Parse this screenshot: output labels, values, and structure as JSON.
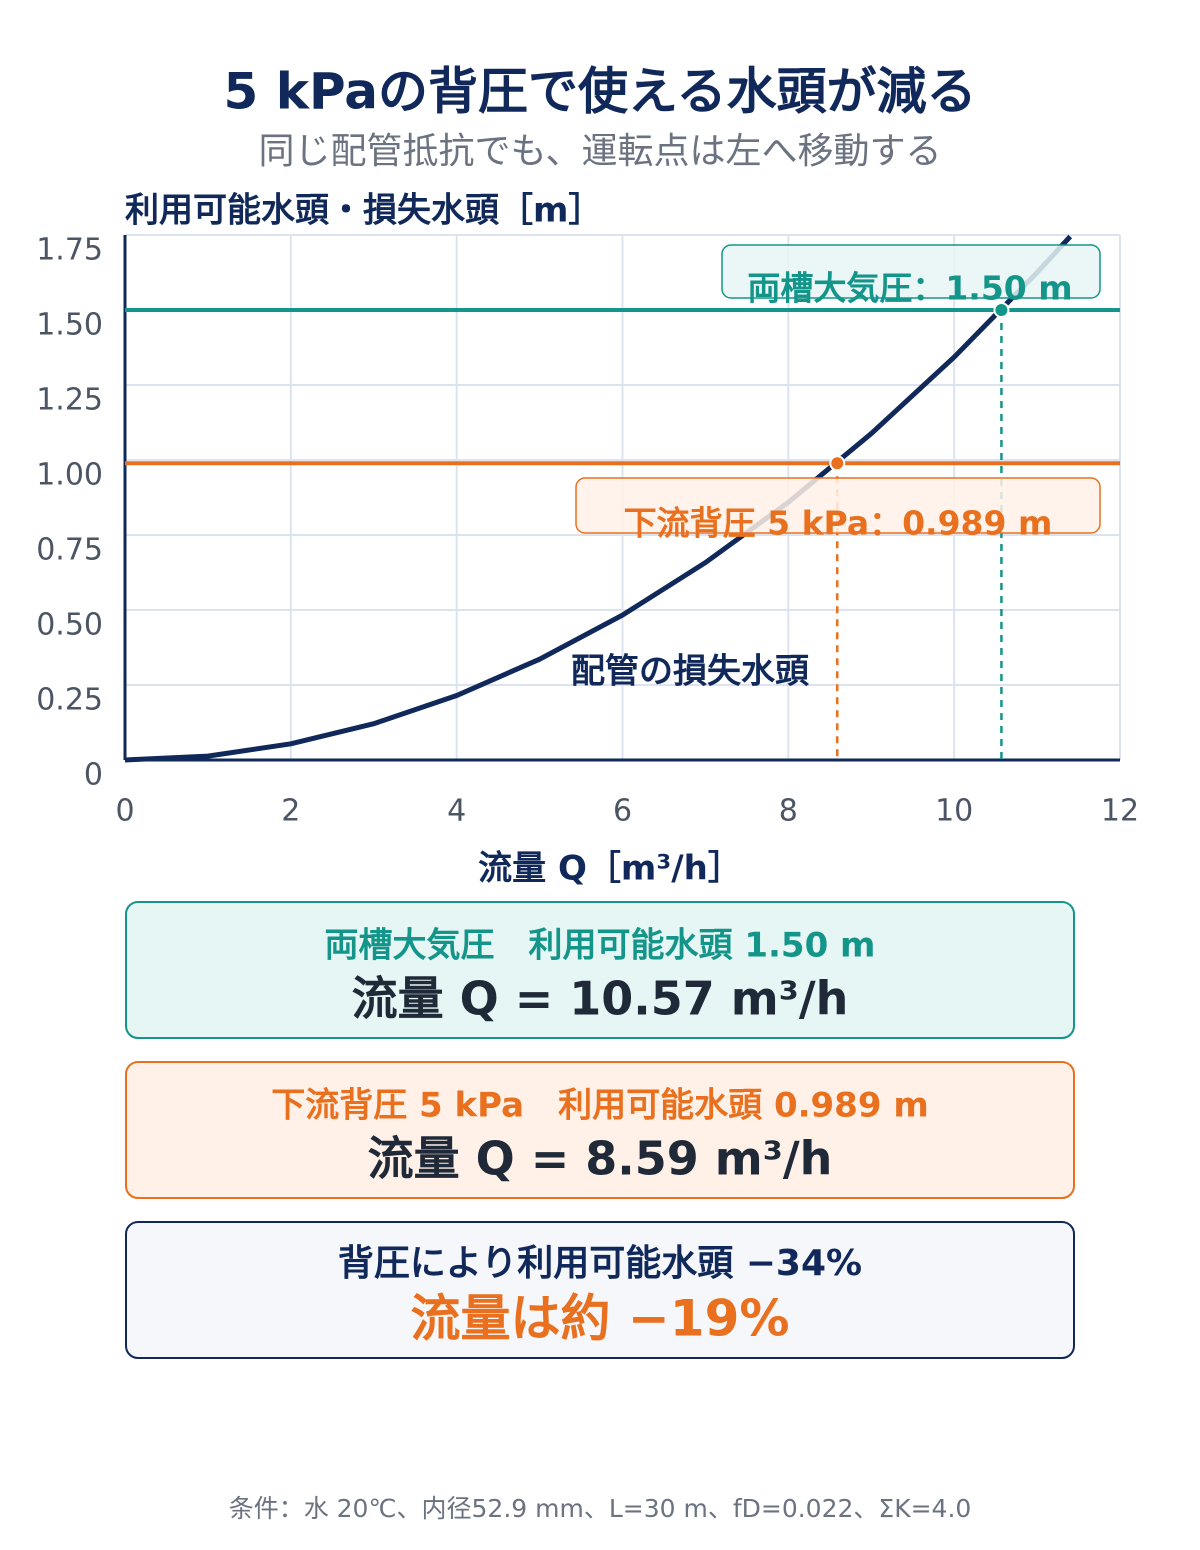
{
  "chart_data": {
    "type": "line",
    "title": "5 kPaの背圧で使える水頭が減る",
    "subtitle": "同じ配管抵抗でも、運転点は左へ移動する",
    "y_label": "利用可能水頭・損失水頭［m］",
    "x_label": "流量 Q［m³/h］",
    "x": [
      0,
      1,
      2,
      3,
      4,
      5,
      6,
      7,
      8,
      9,
      10,
      11,
      11.4
    ],
    "series": [
      {
        "name": "配管の損失水頭",
        "color": "#10295a",
        "values": [
          0,
          0.013,
          0.054,
          0.121,
          0.215,
          0.336,
          0.483,
          0.658,
          0.859,
          1.088,
          1.343,
          1.625,
          1.745
        ]
      }
    ],
    "hlines": [
      {
        "label": "両槽大気圧：1.50 m",
        "value": 1.5,
        "color": "#14958a",
        "operating_q": 10.57
      },
      {
        "label": "下流背圧 5 kPa：0.989 m",
        "value": 0.989,
        "color": "#e8701e",
        "operating_q": 8.59
      }
    ],
    "xlim": [
      0,
      12
    ],
    "xticks": [
      0,
      2,
      4,
      6,
      8,
      10,
      12
    ],
    "ylim": [
      0,
      1.75
    ],
    "yticks": [
      0,
      0.25,
      {
        "value": 0.5,
        "label": "0.50"
      },
      0.75,
      {
        "value": 1,
        "label": "1.00"
      },
      1.25,
      {
        "value": 1.5,
        "label": "1.50"
      },
      1.75
    ],
    "grid": true
  },
  "panels": [
    {
      "heading": "両槽大気圧　利用可能水頭 1.50 m",
      "result": "流量 Q = 10.57 m³/h"
    },
    {
      "heading": "下流背圧 5 kPa　利用可能水頭 0.989 m",
      "result": "流量 Q = 8.59 m³/h"
    }
  ],
  "summary": {
    "heading": "背圧により利用可能水頭 −34%",
    "result": "流量は約 −19%"
  },
  "footnote": "条件：水 20℃、内径52.9 mm、L=30 m、fD=0.022、ΣK=4.0"
}
